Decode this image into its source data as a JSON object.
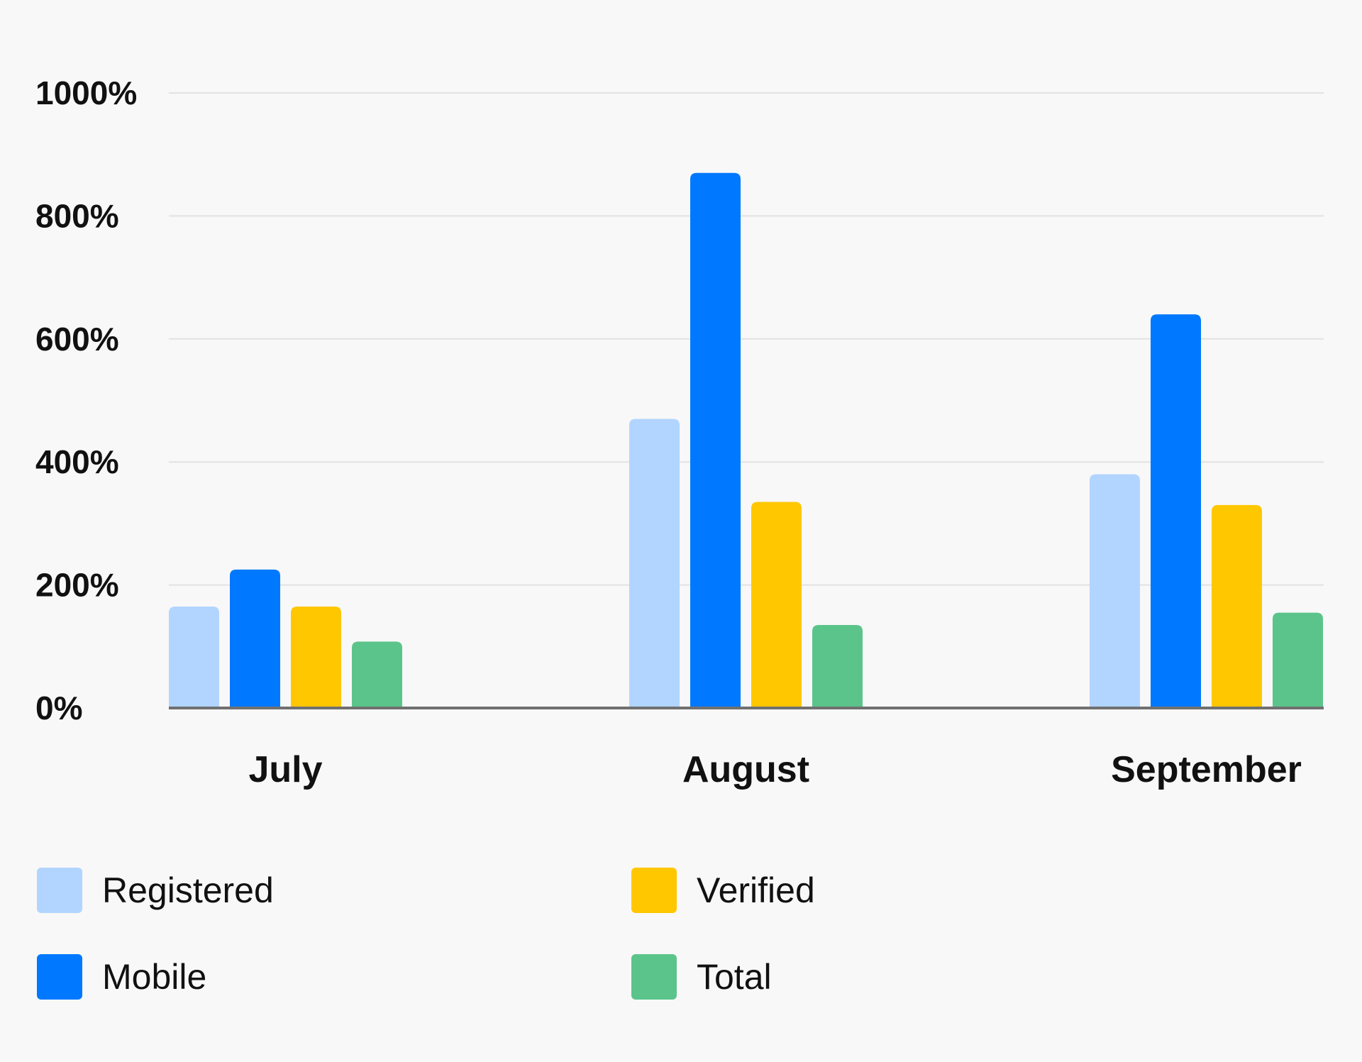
{
  "chart_data": {
    "type": "bar",
    "categories": [
      "July",
      "August",
      "September"
    ],
    "series": [
      {
        "name": "Registered",
        "values": [
          165,
          470,
          380
        ],
        "color": "#b2d5ff"
      },
      {
        "name": "Mobile",
        "values": [
          225,
          870,
          640
        ],
        "color": "#0078ff"
      },
      {
        "name": "Verified",
        "values": [
          165,
          335,
          330
        ],
        "color": "#ffc700"
      },
      {
        "name": "Total",
        "values": [
          108,
          135,
          155
        ],
        "color": "#5bc48a"
      }
    ],
    "yticks": [
      "0%",
      "200%",
      "400%",
      "600%",
      "800%",
      "1000%"
    ],
    "ytick_values": [
      0,
      200,
      400,
      600,
      800,
      1000
    ],
    "ylim": [
      0,
      1000
    ],
    "grid": true,
    "legend_position": "bottom",
    "title": "",
    "xlabel": "",
    "ylabel": ""
  }
}
